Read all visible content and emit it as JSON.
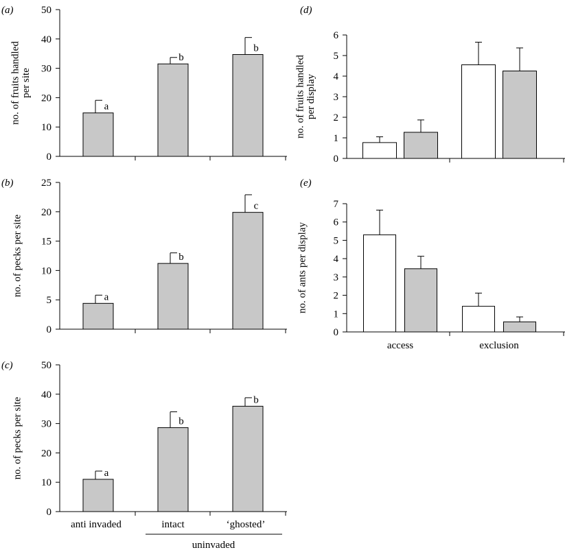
{
  "colors": {
    "filled_bar": "#c8c8c8",
    "open_bar": "#ffffff",
    "stroke": "#000000"
  },
  "chart_data": [
    {
      "panel": "(a)",
      "type": "bar",
      "ylabel": "no. of fruits handled per site",
      "ylabel_lines": [
        "no. of fruits handled",
        "per site"
      ],
      "ylim": [
        0,
        50
      ],
      "yticks": [
        0,
        10,
        20,
        30,
        40,
        50
      ],
      "categories": [
        "anti invaded",
        "intact",
        "‘ghosted’"
      ],
      "values": [
        14.8,
        31.5,
        34.7
      ],
      "errors": [
        4.3,
        2.2,
        5.8
      ],
      "sig_letters": [
        "a",
        "b",
        "b"
      ]
    },
    {
      "panel": "(b)",
      "type": "bar",
      "ylabel": "no. of pecks per site",
      "ylabel_lines": [
        "no. of pecks per site"
      ],
      "ylim": [
        0,
        25
      ],
      "yticks": [
        0,
        5,
        10,
        15,
        20,
        25
      ],
      "categories": [
        "anti invaded",
        "intact",
        "‘ghosted’"
      ],
      "values": [
        4.4,
        11.2,
        19.9
      ],
      "errors": [
        1.4,
        1.8,
        3.0
      ],
      "sig_letters": [
        "a",
        "b",
        "c"
      ]
    },
    {
      "panel": "(c)",
      "type": "bar",
      "ylabel": "no. of pecks per site",
      "ylabel_lines": [
        "no. of pecks per site"
      ],
      "ylim": [
        0,
        50
      ],
      "yticks": [
        0,
        10,
        20,
        30,
        40,
        50
      ],
      "categories": [
        "anti invaded",
        "intact",
        "‘ghosted’"
      ],
      "values": [
        11.0,
        28.6,
        35.9
      ],
      "errors": [
        2.8,
        5.4,
        2.9
      ],
      "sig_letters": [
        "a",
        "b",
        "b"
      ],
      "group_label": "uninvaded"
    },
    {
      "panel": "(d)",
      "type": "bar",
      "ylabel": "no. of fruits handled per display",
      "ylabel_lines": [
        "no. of fruits handled",
        "per display"
      ],
      "ylim": [
        0,
        6
      ],
      "yticks": [
        0,
        1,
        2,
        3,
        4,
        5,
        6
      ],
      "categories": [
        "access",
        "exclusion"
      ],
      "series": [
        {
          "style": "open",
          "values": [
            0.77,
            4.55
          ],
          "errors": [
            0.28,
            1.1
          ]
        },
        {
          "style": "filled",
          "values": [
            1.27,
            4.25
          ],
          "errors": [
            0.6,
            1.12
          ]
        }
      ]
    },
    {
      "panel": "(e)",
      "type": "bar",
      "ylabel": "no. of ants per display",
      "ylabel_lines": [
        "no. of ants per display"
      ],
      "ylim": [
        0,
        7
      ],
      "yticks": [
        0,
        1,
        2,
        3,
        4,
        5,
        6,
        7
      ],
      "categories": [
        "access",
        "exclusion"
      ],
      "series": [
        {
          "style": "open",
          "values": [
            5.3,
            1.4
          ],
          "errors": [
            1.35,
            0.72
          ]
        },
        {
          "style": "filled",
          "values": [
            3.45,
            0.55
          ],
          "errors": [
            0.68,
            0.27
          ]
        }
      ]
    }
  ]
}
